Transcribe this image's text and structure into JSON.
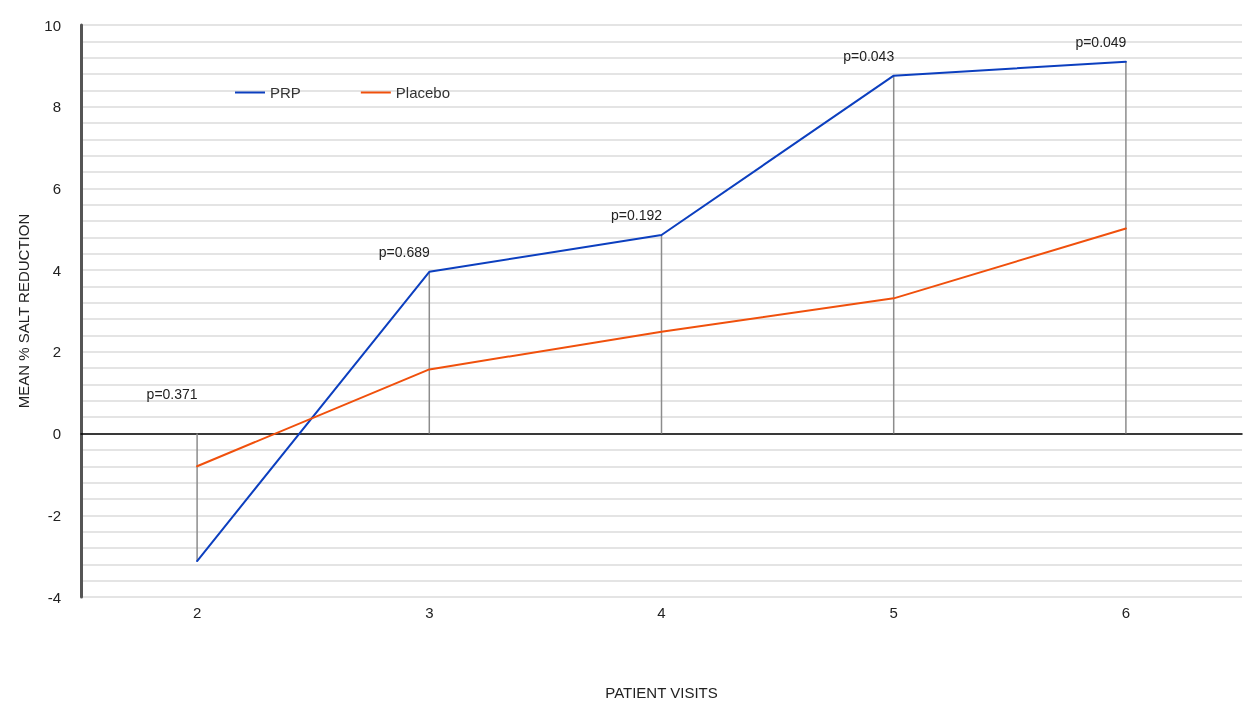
{
  "chart_data": {
    "type": "line",
    "xlabel": "PATIENT VISITS",
    "ylabel": "MEAN % SALT REDUCTION",
    "categories": [
      "2",
      "3",
      "4",
      "5",
      "6"
    ],
    "series": [
      {
        "name": "PRP",
        "color": "#0c3fbf",
        "values": [
          -3.12,
          3.96,
          4.86,
          8.76,
          9.1
        ]
      },
      {
        "name": "Placebo",
        "color": "#f0500c",
        "values": [
          -0.8,
          1.57,
          2.49,
          3.31,
          5.02
        ]
      },
      {
        "type": "bar",
        "color": "#8c8c8c",
        "values": [
          -3.12,
          3.96,
          4.86,
          8.76,
          9.1
        ]
      }
    ],
    "ylim": [
      -4,
      10
    ],
    "yticks": [
      -4,
      {
        "value": -3.6,
        "label": null
      },
      {
        "value": -3.2,
        "label": null
      },
      {
        "value": -2.8,
        "label": null
      },
      {
        "value": -2.4,
        "label": null
      },
      -2,
      {
        "value": -1.6,
        "label": null
      },
      {
        "value": -1.2,
        "label": null
      },
      {
        "value": -0.8,
        "label": null
      },
      {
        "value": -0.4,
        "label": null
      },
      0,
      {
        "value": 0.4,
        "label": null
      },
      {
        "value": 0.8,
        "label": null
      },
      {
        "value": 1.2,
        "label": null
      },
      {
        "value": 1.6,
        "label": null
      },
      2,
      {
        "value": 2.4,
        "label": null
      },
      {
        "value": 2.8,
        "label": null
      },
      {
        "value": 3.2,
        "label": null
      },
      {
        "value": 3.6,
        "label": null
      },
      4,
      {
        "value": 4.4,
        "label": null
      },
      {
        "value": 4.8,
        "label": null
      },
      {
        "value": 5.2,
        "label": null
      },
      {
        "value": 5.6,
        "label": null
      },
      6,
      {
        "value": 6.4,
        "label": null
      },
      {
        "value": 6.8,
        "label": null
      },
      {
        "value": 7.2,
        "label": null
      },
      {
        "value": 7.6,
        "label": null
      },
      8,
      {
        "value": 8.4,
        "label": null
      },
      {
        "value": 8.8,
        "label": null
      },
      {
        "value": 9.2,
        "label": null
      },
      {
        "value": 9.6,
        "label": null
      },
      10
    ],
    "grid": "y",
    "legend": "top left",
    "marker": "none",
    "line_style": "solid",
    "annotations": [
      "p=0.371",
      "p=0.689",
      "p=0.192",
      "p=0.043",
      "p=0.049"
    ]
  }
}
